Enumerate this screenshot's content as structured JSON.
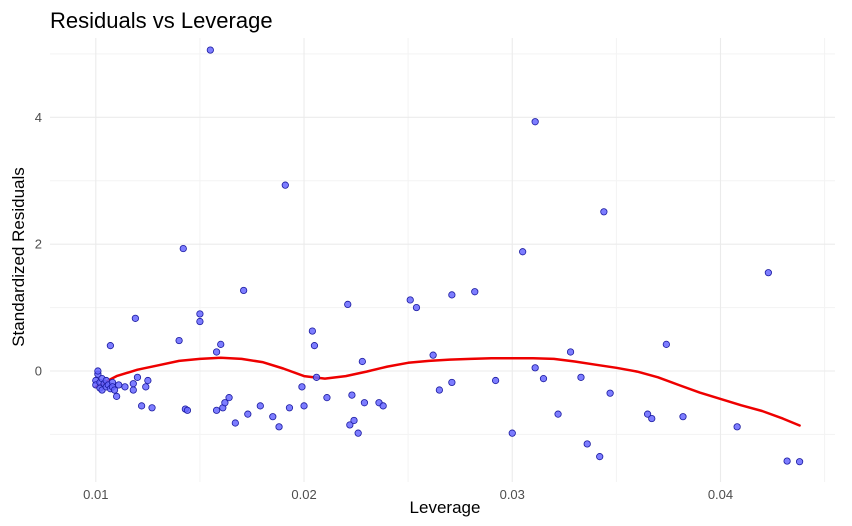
{
  "chart_data": {
    "type": "scatter",
    "title": "Residuals vs Leverage",
    "xlabel": "Leverage",
    "ylabel": "Standardized Residuals",
    "xlim": [
      0.0078,
      0.0455
    ],
    "ylim": [
      -1.75,
      5.25
    ],
    "x_ticks": [
      0.01,
      0.02,
      0.03,
      0.04
    ],
    "x_tick_labels": [
      "0.01",
      "0.02",
      "0.03",
      "0.04"
    ],
    "y_ticks": [
      0,
      2,
      4
    ],
    "y_tick_labels": [
      "0",
      "2",
      "4"
    ],
    "grid": true,
    "colors": {
      "point_fill": "#6666ff",
      "point_stroke": "#1a1aa0",
      "smooth_line": "#ee0000",
      "grid": "#ebebeb"
    },
    "points": [
      {
        "x": 0.01,
        "y": -0.15
      },
      {
        "x": 0.01,
        "y": -0.22
      },
      {
        "x": 0.0101,
        "y": -0.05
      },
      {
        "x": 0.0101,
        "y": 0.0
      },
      {
        "x": 0.0102,
        "y": -0.18
      },
      {
        "x": 0.0102,
        "y": -0.27
      },
      {
        "x": 0.0103,
        "y": -0.12
      },
      {
        "x": 0.0103,
        "y": -0.3
      },
      {
        "x": 0.0104,
        "y": -0.2
      },
      {
        "x": 0.0105,
        "y": -0.25
      },
      {
        "x": 0.0105,
        "y": -0.15
      },
      {
        "x": 0.0106,
        "y": -0.22
      },
      {
        "x": 0.0107,
        "y": -0.28
      },
      {
        "x": 0.0108,
        "y": -0.18
      },
      {
        "x": 0.0108,
        "y": -0.25
      },
      {
        "x": 0.0107,
        "y": 0.4
      },
      {
        "x": 0.0109,
        "y": -0.3
      },
      {
        "x": 0.011,
        "y": -0.4
      },
      {
        "x": 0.0111,
        "y": -0.22
      },
      {
        "x": 0.0114,
        "y": -0.25
      },
      {
        "x": 0.0118,
        "y": -0.2
      },
      {
        "x": 0.0118,
        "y": -0.3
      },
      {
        "x": 0.0119,
        "y": 0.83
      },
      {
        "x": 0.012,
        "y": -0.1
      },
      {
        "x": 0.0122,
        "y": -0.55
      },
      {
        "x": 0.0124,
        "y": -0.25
      },
      {
        "x": 0.0125,
        "y": -0.15
      },
      {
        "x": 0.0127,
        "y": -0.58
      },
      {
        "x": 0.014,
        "y": 0.48
      },
      {
        "x": 0.0142,
        "y": 1.93
      },
      {
        "x": 0.0143,
        "y": -0.6
      },
      {
        "x": 0.0144,
        "y": -0.62
      },
      {
        "x": 0.015,
        "y": 0.9
      },
      {
        "x": 0.015,
        "y": 0.78
      },
      {
        "x": 0.0155,
        "y": 5.06
      },
      {
        "x": 0.0158,
        "y": 0.3
      },
      {
        "x": 0.0158,
        "y": -0.62
      },
      {
        "x": 0.016,
        "y": 0.42
      },
      {
        "x": 0.0161,
        "y": -0.58
      },
      {
        "x": 0.0162,
        "y": -0.5
      },
      {
        "x": 0.0164,
        "y": -0.42
      },
      {
        "x": 0.0167,
        "y": -0.82
      },
      {
        "x": 0.0171,
        "y": 1.27
      },
      {
        "x": 0.0173,
        "y": -0.68
      },
      {
        "x": 0.0179,
        "y": -0.55
      },
      {
        "x": 0.0185,
        "y": -0.72
      },
      {
        "x": 0.0188,
        "y": -0.88
      },
      {
        "x": 0.0191,
        "y": 2.93
      },
      {
        "x": 0.0193,
        "y": -0.58
      },
      {
        "x": 0.0199,
        "y": -0.25
      },
      {
        "x": 0.02,
        "y": -0.55
      },
      {
        "x": 0.0204,
        "y": 0.63
      },
      {
        "x": 0.0205,
        "y": 0.4
      },
      {
        "x": 0.0206,
        "y": -0.1
      },
      {
        "x": 0.0211,
        "y": -0.42
      },
      {
        "x": 0.0221,
        "y": 1.05
      },
      {
        "x": 0.0222,
        "y": -0.85
      },
      {
        "x": 0.0223,
        "y": -0.38
      },
      {
        "x": 0.0224,
        "y": -0.78
      },
      {
        "x": 0.0226,
        "y": -0.98
      },
      {
        "x": 0.0228,
        "y": 0.15
      },
      {
        "x": 0.0229,
        "y": -0.5
      },
      {
        "x": 0.0236,
        "y": -0.5
      },
      {
        "x": 0.0238,
        "y": -0.55
      },
      {
        "x": 0.0251,
        "y": 1.12
      },
      {
        "x": 0.0254,
        "y": 1.0
      },
      {
        "x": 0.0262,
        "y": 0.25
      },
      {
        "x": 0.0265,
        "y": -0.3
      },
      {
        "x": 0.0271,
        "y": 1.2
      },
      {
        "x": 0.0271,
        "y": -0.18
      },
      {
        "x": 0.0282,
        "y": 1.25
      },
      {
        "x": 0.0292,
        "y": -0.15
      },
      {
        "x": 0.03,
        "y": -0.98
      },
      {
        "x": 0.0305,
        "y": 1.88
      },
      {
        "x": 0.0311,
        "y": 3.93
      },
      {
        "x": 0.0311,
        "y": 0.05
      },
      {
        "x": 0.0315,
        "y": -0.12
      },
      {
        "x": 0.0322,
        "y": -0.68
      },
      {
        "x": 0.0328,
        "y": 0.3
      },
      {
        "x": 0.0333,
        "y": -0.1
      },
      {
        "x": 0.0336,
        "y": -1.15
      },
      {
        "x": 0.0342,
        "y": -1.35
      },
      {
        "x": 0.0344,
        "y": 2.51
      },
      {
        "x": 0.0347,
        "y": -0.35
      },
      {
        "x": 0.0365,
        "y": -0.68
      },
      {
        "x": 0.0367,
        "y": -0.75
      },
      {
        "x": 0.0374,
        "y": 0.42
      },
      {
        "x": 0.0382,
        "y": -0.72
      },
      {
        "x": 0.0408,
        "y": -0.88
      },
      {
        "x": 0.0423,
        "y": 1.55
      },
      {
        "x": 0.0432,
        "y": -1.42
      },
      {
        "x": 0.0438,
        "y": -1.43
      }
    ],
    "smooth": [
      {
        "x": 0.01,
        "y": -0.25
      },
      {
        "x": 0.011,
        "y": -0.08
      },
      {
        "x": 0.012,
        "y": 0.02
      },
      {
        "x": 0.013,
        "y": 0.09
      },
      {
        "x": 0.014,
        "y": 0.16
      },
      {
        "x": 0.015,
        "y": 0.19
      },
      {
        "x": 0.016,
        "y": 0.21
      },
      {
        "x": 0.017,
        "y": 0.19
      },
      {
        "x": 0.018,
        "y": 0.14
      },
      {
        "x": 0.019,
        "y": 0.04
      },
      {
        "x": 0.02,
        "y": -0.08
      },
      {
        "x": 0.021,
        "y": -0.12
      },
      {
        "x": 0.022,
        "y": -0.08
      },
      {
        "x": 0.023,
        "y": -0.01
      },
      {
        "x": 0.024,
        "y": 0.07
      },
      {
        "x": 0.025,
        "y": 0.13
      },
      {
        "x": 0.026,
        "y": 0.16
      },
      {
        "x": 0.027,
        "y": 0.18
      },
      {
        "x": 0.028,
        "y": 0.19
      },
      {
        "x": 0.029,
        "y": 0.2
      },
      {
        "x": 0.03,
        "y": 0.2
      },
      {
        "x": 0.031,
        "y": 0.2
      },
      {
        "x": 0.032,
        "y": 0.19
      },
      {
        "x": 0.033,
        "y": 0.15
      },
      {
        "x": 0.034,
        "y": 0.1
      },
      {
        "x": 0.035,
        "y": 0.05
      },
      {
        "x": 0.036,
        "y": -0.01
      },
      {
        "x": 0.037,
        "y": -0.1
      },
      {
        "x": 0.038,
        "y": -0.22
      },
      {
        "x": 0.039,
        "y": -0.34
      },
      {
        "x": 0.04,
        "y": -0.44
      },
      {
        "x": 0.041,
        "y": -0.54
      },
      {
        "x": 0.042,
        "y": -0.63
      },
      {
        "x": 0.043,
        "y": -0.75
      },
      {
        "x": 0.0438,
        "y": -0.86
      }
    ]
  }
}
